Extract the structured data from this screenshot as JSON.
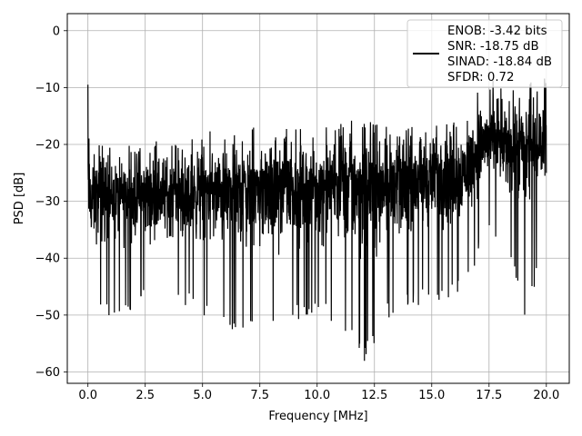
{
  "chart_data": {
    "type": "line",
    "title": "",
    "xlabel": "Frequency [MHz]",
    "ylabel": "PSD [dB]",
    "xlim": [
      -0.9,
      21.0
    ],
    "ylim": [
      -62,
      3
    ],
    "xticks": [
      0.0,
      2.5,
      5.0,
      7.5,
      10.0,
      12.5,
      15.0,
      17.5,
      20.0
    ],
    "xtick_labels": [
      "0.0",
      "2.5",
      "5.0",
      "7.5",
      "10.0",
      "12.5",
      "15.0",
      "17.5",
      "20.0"
    ],
    "yticks": [
      0,
      -10,
      -20,
      -30,
      -40,
      -50,
      -60
    ],
    "ytick_labels": [
      "0",
      "−10",
      "−20",
      "−30",
      "−40",
      "−50",
      "−60"
    ],
    "grid": true,
    "legend_position": "top-right",
    "legend": {
      "entries": [
        "ENOB: -3.42 bits",
        "SNR: -18.75 dB",
        "SINAD: -18.84 dB",
        "SFDR: 0.72"
      ],
      "line_color": "#000000"
    },
    "series": [
      {
        "color": "#000000",
        "envelope": {
          "x": [
            0.0,
            0.05,
            0.1,
            0.5,
            1.0,
            2.0,
            3.0,
            4.0,
            5.0,
            6.0,
            7.0,
            8.0,
            9.0,
            10.0,
            11.0,
            12.0,
            13.0,
            14.0,
            15.0,
            16.0,
            16.5,
            17.0,
            17.5,
            18.0,
            18.5,
            19.0,
            19.5,
            20.0
          ],
          "upper": [
            -9.5,
            -12,
            -17,
            -19,
            -20,
            -19,
            -18,
            -18,
            -17.5,
            -18,
            -17,
            -17,
            -17,
            -16.5,
            -16,
            -15.5,
            -16,
            -15.5,
            -15,
            -15,
            -14,
            -10,
            -8,
            -10,
            -8,
            -10,
            -8,
            -7
          ],
          "typical": [
            -28,
            -30,
            -30,
            -29,
            -29,
            -29,
            -28.5,
            -28.5,
            -28,
            -28,
            -27.5,
            -27.5,
            -27.5,
            -27,
            -27,
            -26.5,
            -26.5,
            -26,
            -25.5,
            -25,
            -24,
            -21,
            -19,
            -20,
            -20,
            -21,
            -20,
            -19
          ],
          "lower": [
            -28,
            -44,
            -48,
            -50,
            -51,
            -49,
            -47,
            -48,
            -50,
            -53,
            -54,
            -52,
            -51,
            -50,
            -52,
            -59,
            -51,
            -49,
            -48,
            -47,
            -45,
            -40,
            -37,
            -38,
            -40,
            -53,
            -45,
            -26
          ]
        }
      }
    ]
  }
}
